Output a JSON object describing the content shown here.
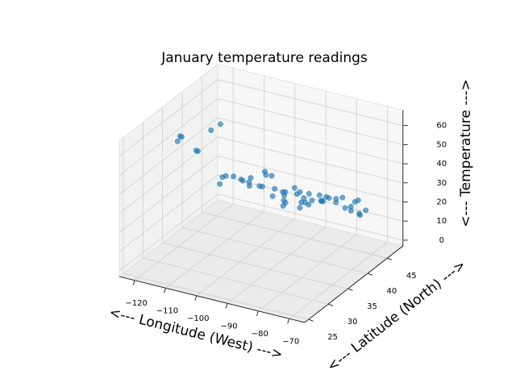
{
  "chart_data": {
    "type": "scatter3d",
    "title": "January temperature readings",
    "xlabel": "<--- Longitude (West) --->",
    "ylabel": "<--- Latitude (North) --->",
    "zlabel": "<--- Temperature --->",
    "color": "#1f77b4",
    "xlim": [
      -125,
      -65
    ],
    "ylim": [
      24,
      49
    ],
    "zlim": [
      -3,
      68
    ],
    "xticks": [
      {
        "value": -120,
        "label": "−120"
      },
      {
        "value": -110,
        "label": "−110"
      },
      {
        "value": -100,
        "label": "−100"
      },
      {
        "value": -90,
        "label": "−90"
      },
      {
        "value": -80,
        "label": "−80"
      },
      {
        "value": -70,
        "label": "−70"
      }
    ],
    "yticks": [
      25,
      30,
      35,
      40,
      45
    ],
    "zticks": [
      0,
      10,
      20,
      30,
      40,
      50,
      60
    ],
    "grid": true,
    "x": [
      -122.3,
      -122.7,
      -122.4,
      -118.2,
      -117.2,
      -112.1,
      -111.9,
      -115.1,
      -106.6,
      -105,
      -104.8,
      -100.8,
      -96.8,
      -97.5,
      -96.8,
      -95.4,
      -98.5,
      -93.3,
      -93.6,
      -94.6,
      -90.2,
      -90.1,
      -92.3,
      -87.6,
      -86.2,
      -86.8,
      -90.2,
      -87.9,
      -85.7,
      -86.8,
      -84.4,
      -83,
      -83,
      -84.5,
      -81.7,
      -80,
      -81.4,
      -80.2,
      -82.5,
      -81,
      -80.8,
      -78.6,
      -77,
      -76.6,
      -75.2,
      -74,
      -73.8,
      -71.1,
      -71.4,
      -72.7,
      -70.3,
      -73.2,
      -71.5,
      -78.9,
      -76.1,
      -77.4
    ],
    "y": [
      47.6,
      45.5,
      37.8,
      34.1,
      32.7,
      33.4,
      40.8,
      36.2,
      35.1,
      39.7,
      41.1,
      46.8,
      43.5,
      35.5,
      32.8,
      29.8,
      29.4,
      45,
      41.6,
      39.1,
      38.6,
      30,
      34.7,
      41.9,
      39.8,
      33.5,
      32.3,
      43,
      38.3,
      36.2,
      33.7,
      42.3,
      40,
      39.1,
      41.5,
      40.4,
      28.5,
      25.8,
      27.9,
      34,
      35.2,
      35.8,
      38.9,
      39.3,
      40,
      40.7,
      42.7,
      42.4,
      41.8,
      41.8,
      43.7,
      44.5,
      43,
      42.9,
      43,
      37.5
    ],
    "z": [
      40,
      40,
      49,
      57,
      57,
      53,
      28,
      47,
      35,
      30,
      27,
      10,
      14,
      37,
      45,
      52,
      51,
      12,
      20,
      27,
      30,
      53,
      40,
      22,
      26,
      43,
      45,
      19,
      33,
      37,
      42,
      24,
      28,
      30,
      26,
      28,
      60,
      67,
      61,
      45,
      41,
      40,
      34,
      33,
      32,
      32,
      22,
      29,
      29,
      26,
      22,
      17,
      21,
      24,
      22,
      37
    ]
  }
}
